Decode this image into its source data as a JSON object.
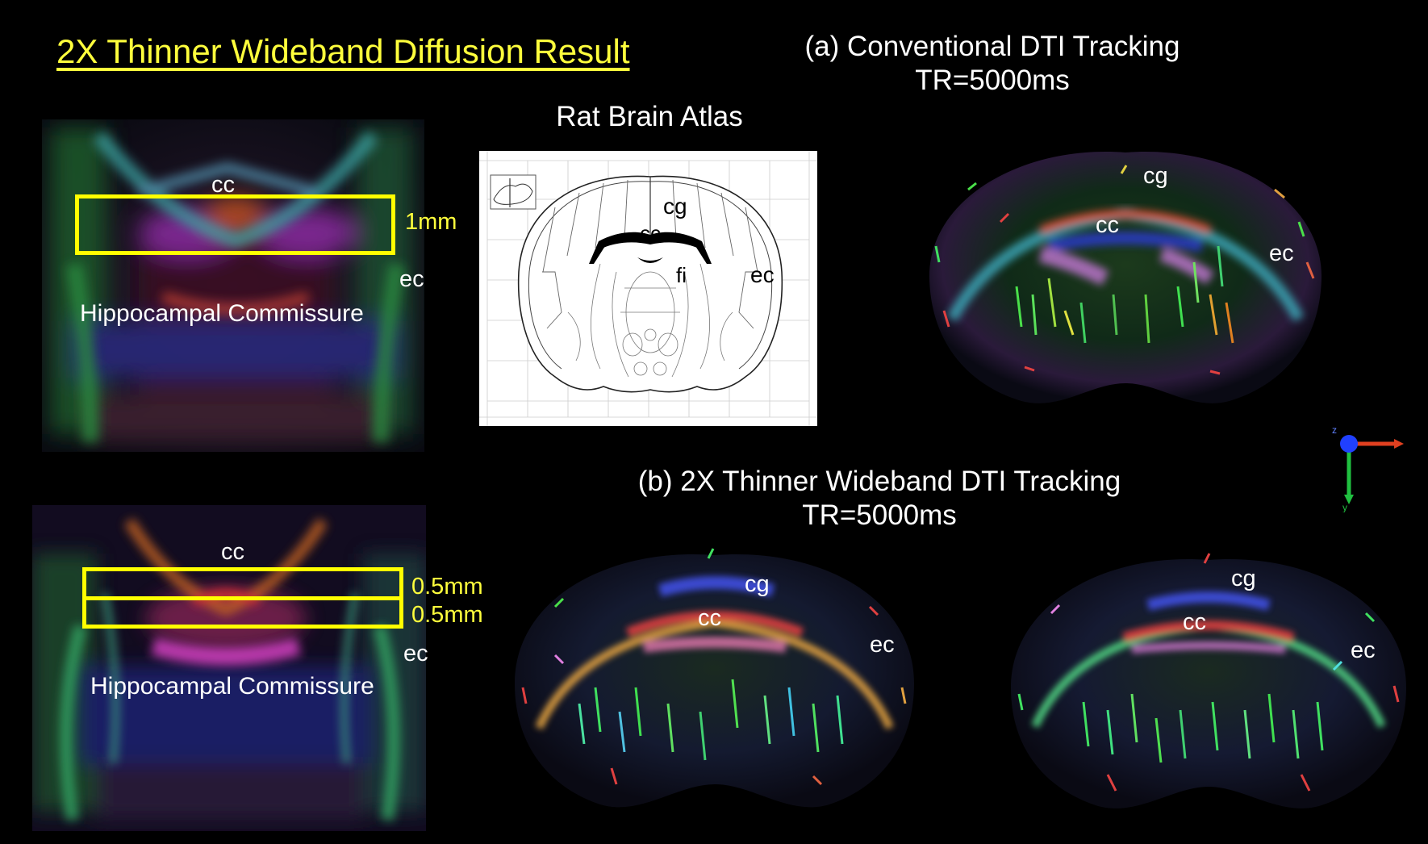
{
  "title": "2X Thinner Wideband Diffusion Result",
  "section_a": {
    "heading_line1": "(a)  Conventional DTI Tracking",
    "heading_line2": "TR=5000ms"
  },
  "section_b": {
    "heading_line1": "(b) 2X Thinner Wideband DTI Tracking",
    "heading_line2": "TR=5000ms"
  },
  "atlas": {
    "heading": "Rat Brain Atlas",
    "labels": {
      "cg": "cg",
      "cc": "cc",
      "fi": "fi",
      "ec": "ec"
    }
  },
  "top_left_panel": {
    "cc_label": "cc",
    "ec_label": "ec",
    "thickness_label": "1mm",
    "region_label": "Hippocampal Commissure"
  },
  "bottom_left_panel": {
    "cc_label": "cc",
    "ec_label": "ec",
    "thickness_label_1": "0.5mm",
    "thickness_label_2": "0.5mm",
    "region_label": "Hippocampal Commissure"
  },
  "tracking_a": {
    "cg_label": "cg",
    "cc_label": "cc",
    "ec_label": "ec"
  },
  "tracking_b1": {
    "cg_label": "cg",
    "cc_label": "cc",
    "ec_label": "ec"
  },
  "tracking_b2": {
    "cg_label": "cg",
    "cc_label": "cc",
    "ec_label": "ec"
  },
  "axes_icon": {
    "z_label": "z",
    "y_label": "y"
  },
  "colors": {
    "title": "#ffff3c",
    "roi_box": "#ffff00",
    "background": "#000000"
  }
}
